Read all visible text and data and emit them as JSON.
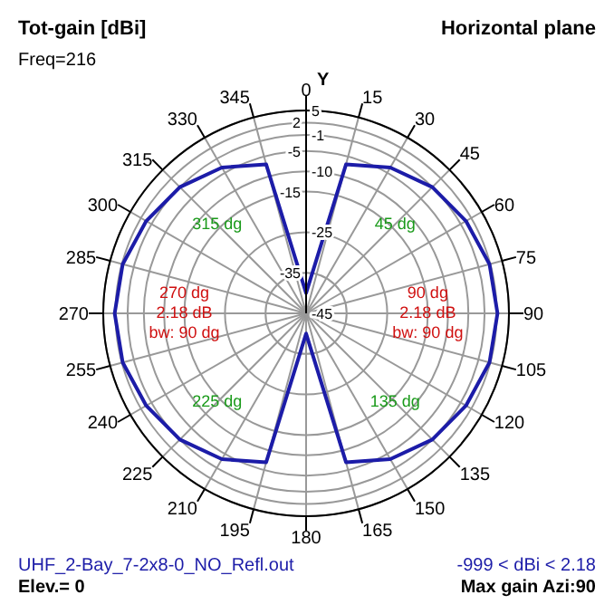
{
  "chart_data": {
    "type": "radar",
    "title": "Tot-gain [dBi]",
    "subtitle": "Horizontal plane",
    "categories": [
      "0",
      "15",
      "30",
      "45",
      "60",
      "75",
      "90",
      "105",
      "120",
      "135",
      "150",
      "165",
      "180",
      "195",
      "210",
      "225",
      "240",
      "255",
      "270",
      "285",
      "300",
      "315",
      "330",
      "345"
    ],
    "series": [
      {
        "color": "#1c1ca8",
        "values": [
          -40,
          -7,
          -3.5,
          -1,
          0.5,
          1.8,
          2.18,
          1.8,
          0.5,
          -1,
          -3.5,
          -7,
          -40,
          -7,
          -3.5,
          -1,
          0.5,
          1.8,
          2.18,
          1.8,
          0.5,
          -1,
          -3.5,
          -7
        ]
      }
    ],
    "ylim": [
      -45,
      5
    ],
    "yticks": [
      5,
      2,
      -1,
      -5,
      -10,
      -15,
      -25,
      -35,
      -45
    ],
    "grid": true,
    "annotations": [
      "Freq=216",
      "Y",
      "45 dg",
      "135 dg",
      "225 dg",
      "315 dg",
      "90 dg\n2.18 dB\nbw: 90 dg",
      "270 dg\n2.18 dB\nbw: 90 dg",
      "UHF_2-Bay_7-2x8-0_NO_Refl.out",
      "Elev.= 0",
      "-999 < dBi < 2.18",
      "Max gain Azi:90"
    ]
  }
}
